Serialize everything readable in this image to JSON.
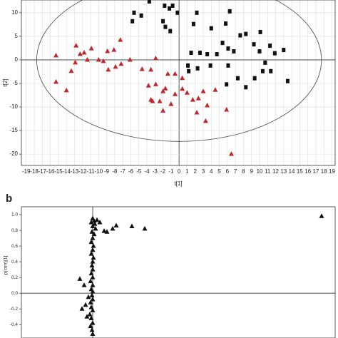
{
  "chart_data": [
    {
      "type": "scatter",
      "xlabel": "t[1]",
      "ylabel": "t[2]",
      "xlim": [
        -19.6,
        19.4
      ],
      "ylim": [
        -22.4,
        12.7
      ],
      "xticks": [
        -19,
        -18,
        -17,
        -16,
        -15,
        -14,
        -13,
        -12,
        -11,
        -10,
        -9,
        -8,
        -7,
        -6,
        -5,
        -4,
        -3,
        -2,
        -1,
        0,
        1,
        2,
        3,
        4,
        5,
        6,
        7,
        8,
        9,
        10,
        11,
        12,
        13,
        14,
        15,
        16,
        17,
        18,
        19
      ],
      "yticks": [
        10,
        5,
        0,
        -5,
        -10,
        -15,
        -20
      ],
      "grid": true,
      "ellipse": {
        "rx": 17.7,
        "ry": 17.3
      },
      "series": [
        {
          "color": "#111111",
          "marker": "square",
          "x": [
            -3.7,
            -5.6,
            -4.7,
            -1.8,
            -0.8,
            -1.2,
            -0.2,
            2.2,
            6.3,
            -5.8,
            -2.0,
            1.8,
            4.0,
            -1.7,
            -1.1,
            5.8,
            10.1,
            7.6,
            8.3,
            9.3,
            5.4,
            6.1,
            6.8,
            10.0,
            11.3,
            13.0,
            11.9,
            1.5,
            2.6,
            3.5,
            4.7,
            1.1,
            1.2,
            2.3,
            3.9,
            6.1,
            10.7,
            10.4,
            9.4,
            7.3,
            5.9,
            8.3,
            13.5,
            11.4
          ],
          "values": [
            12.4,
            10.0,
            9.4,
            11.5,
            11.5,
            10.9,
            10.0,
            10.0,
            10.3,
            8.2,
            8.2,
            7.6,
            6.7,
            7.0,
            6.1,
            7.7,
            5.9,
            5.2,
            5.5,
            3.3,
            3.6,
            2.4,
            1.8,
            1.8,
            3.0,
            2.1,
            1.4,
            1.5,
            1.5,
            1.2,
            1.2,
            -1.2,
            -2.4,
            -1.8,
            -1.2,
            -1.2,
            -0.6,
            -2.4,
            -3.9,
            -3.9,
            -5.2,
            -5.8,
            -4.5,
            -2.4
          ]
        },
        {
          "color": "#c0282d",
          "marker": "triangle",
          "x": [
            -15.3,
            -12.8,
            -11.8,
            -10.9,
            -10.0,
            -8.9,
            -8.1,
            -7.3,
            -9.4,
            -11.4,
            -12.3,
            -12.9,
            -13.4,
            -15.3,
            -14.0,
            -8.8,
            -7.9,
            -7.2,
            -6.1,
            -4.6,
            -3.5,
            -2.9,
            -1.4,
            -0.5,
            0.4,
            -3.8,
            -2.9,
            -2.0,
            -3.5,
            -3.3,
            -2.4,
            -2.0,
            -1.0,
            -0.5,
            1.0,
            1.7,
            2.4,
            3.0,
            3.5,
            2.2,
            4.5,
            5.9,
            3.3,
            6.5,
            -1.7,
            0.4
          ],
          "values": [
            0.9,
            3.0,
            1.5,
            2.4,
            0,
            1.8,
            2.1,
            4.2,
            -0.3,
            0,
            1.2,
            -0.6,
            -2.4,
            -4.7,
            -6.5,
            -2.1,
            -1.5,
            -0.9,
            0,
            -2.0,
            -2.1,
            0.3,
            -3.0,
            -3.0,
            -3.9,
            -5.5,
            -5.2,
            -6.7,
            -8.5,
            -8.8,
            -8.8,
            -10.8,
            -9.4,
            -7.3,
            -7.0,
            -8.5,
            -8.2,
            -6.7,
            -9.7,
            -11.2,
            -6.4,
            -10.6,
            -13.0,
            -20.0,
            -6.1,
            -6.2
          ]
        }
      ]
    },
    {
      "type": "scatter",
      "panel": "b",
      "ylabel": "p(corr)[1]",
      "xlim": [
        -0.1,
        0.34
      ],
      "ylim": [
        -0.57,
        1.1
      ],
      "yticks": [
        {
          "value": 1.0,
          "label": "1.0"
        },
        0.8,
        0.6,
        0.4,
        0.2,
        {
          "value": 0.0,
          "label": "0.0"
        },
        -0.2,
        -0.4
      ],
      "grid": false,
      "series": [
        {
          "color": "#111111",
          "marker": "triangle",
          "x": [
            0.0,
            0.002,
            -0.002,
            0.003,
            0.0,
            0.004,
            -0.001,
            0.002,
            0.0,
            -0.002,
            0.001,
            0.0,
            -0.002,
            0.001,
            0.0,
            -0.001,
            0.0,
            -0.002,
            0.0,
            -0.003,
            0.0,
            -0.002,
            0.0,
            -0.001,
            0.0,
            -0.003,
            -0.002,
            0.0,
            -0.004,
            -0.002,
            0.0,
            -0.003,
            -0.001,
            0.0,
            0.01,
            0.016,
            0.02,
            0.028,
            0.033,
            0.055,
            0.073,
            0.321,
            0.006,
            -0.018,
            -0.012,
            -0.015,
            -0.01,
            -0.008,
            -0.006
          ],
          "values": [
            0.95,
            0.92,
            0.9,
            0.88,
            0.85,
            0.82,
            0.78,
            0.75,
            0.7,
            0.65,
            0.6,
            0.55,
            0.5,
            0.45,
            0.4,
            0.35,
            0.3,
            0.25,
            0.2,
            0.15,
            0.1,
            0.05,
            0.02,
            -0.03,
            -0.08,
            -0.12,
            -0.18,
            -0.22,
            -0.27,
            -0.32,
            -0.38,
            -0.42,
            -0.47,
            -0.52,
            0.9,
            0.79,
            0.78,
            0.82,
            0.86,
            0.85,
            0.82,
            0.98,
            0.93,
            0.18,
            0.1,
            -0.2,
            -0.15,
            -0.3,
            -0.05
          ]
        }
      ]
    }
  ]
}
